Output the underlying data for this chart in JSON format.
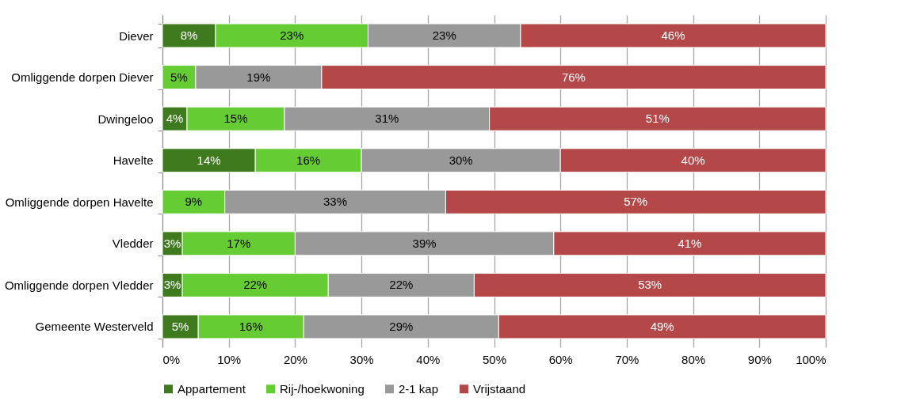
{
  "chart_data": {
    "type": "bar",
    "orientation": "horizontal",
    "stacked": true,
    "categories": [
      "Diever",
      "Omliggende dorpen Diever",
      "Dwingeloo",
      "Havelte",
      "Omliggende dorpen Havelte",
      "Vledder",
      "Omliggende dorpen Vledder",
      "Gemeente Westerveld"
    ],
    "series": [
      {
        "name": "Appartement",
        "color": "#3f7a1f",
        "values": [
          8,
          0,
          3.7,
          14,
          0,
          3,
          3,
          5.4
        ],
        "value_labels": [
          "8%",
          null,
          "4%",
          "14%",
          null,
          "3%",
          "3%",
          "5%"
        ]
      },
      {
        "name": "Rij-/hoekwoning",
        "color": "#66cc33",
        "values": [
          23,
          5,
          14.7,
          16,
          9.4,
          17,
          22,
          15.9
        ],
        "value_labels": [
          "23%",
          "5%",
          "15%",
          "16%",
          "9%",
          "17%",
          "22%",
          "16%"
        ]
      },
      {
        "name": "2-1 kap",
        "color": "#999999",
        "values": [
          23,
          19,
          30.9,
          30,
          33.3,
          39,
          22,
          29.4
        ],
        "value_labels": [
          "23%",
          "19%",
          "31%",
          "30%",
          "33%",
          "39%",
          "22%",
          "29%"
        ]
      },
      {
        "name": "Vrijstaand",
        "color": "#b44848",
        "values": [
          46,
          76,
          50.7,
          40,
          57.3,
          41,
          53,
          49.3
        ],
        "value_labels": [
          "46%",
          "76%",
          "51%",
          "40%",
          "57%",
          "41%",
          "53%",
          "49%"
        ]
      }
    ],
    "xlim": [
      0,
      100
    ],
    "xticks": [
      {
        "value": 0,
        "label": "0%"
      },
      {
        "value": 10,
        "label": "10%"
      },
      {
        "value": 20,
        "label": "20%"
      },
      {
        "value": 30,
        "label": "30%"
      },
      {
        "value": 40,
        "label": "40%"
      },
      {
        "value": 50,
        "label": "50%"
      },
      {
        "value": 60,
        "label": "60%"
      },
      {
        "value": 70,
        "label": "70%"
      },
      {
        "value": 80,
        "label": "80%"
      },
      {
        "value": 90,
        "label": "90%"
      },
      {
        "value": 100,
        "label": "100%"
      }
    ],
    "grid": "x",
    "legend": "bottom"
  }
}
